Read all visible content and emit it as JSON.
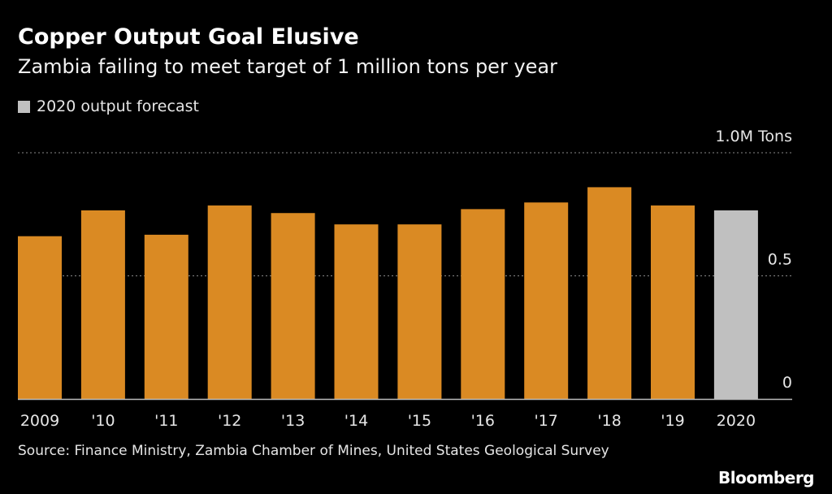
{
  "chart_data": {
    "type": "bar",
    "title": "Copper Output Goal Elusive",
    "subtitle": "Zambia failing to meet target of 1 million tons per year",
    "legend": [
      {
        "name": "2020 output forecast",
        "color": "#c0c0c0"
      }
    ],
    "legend_placement": "top-left",
    "categories": [
      "2009",
      "'10",
      "'11",
      "'12",
      "'13",
      "'14",
      "'15",
      "'16",
      "'17",
      "'18",
      "'19",
      "2020"
    ],
    "values": [
      0.661,
      0.766,
      0.667,
      0.786,
      0.755,
      0.709,
      0.709,
      0.771,
      0.798,
      0.86,
      0.786,
      0.766
    ],
    "forecast": [
      false,
      false,
      false,
      false,
      false,
      false,
      false,
      false,
      false,
      false,
      false,
      true
    ],
    "ylim": [
      0,
      1.0
    ],
    "yticks": [
      {
        "value": 0,
        "label": "0"
      },
      {
        "value": 0.5,
        "label": "0.5"
      },
      {
        "value": 1.0,
        "label": "1.0M Tons"
      }
    ],
    "grid": "dotted horizontal",
    "colors": {
      "actual": "#da8a23",
      "forecast": "#c0c0c0"
    }
  },
  "source": "Source: Finance Ministry, Zambia Chamber of Mines, United States Geological Survey",
  "logo": "Bloomberg"
}
